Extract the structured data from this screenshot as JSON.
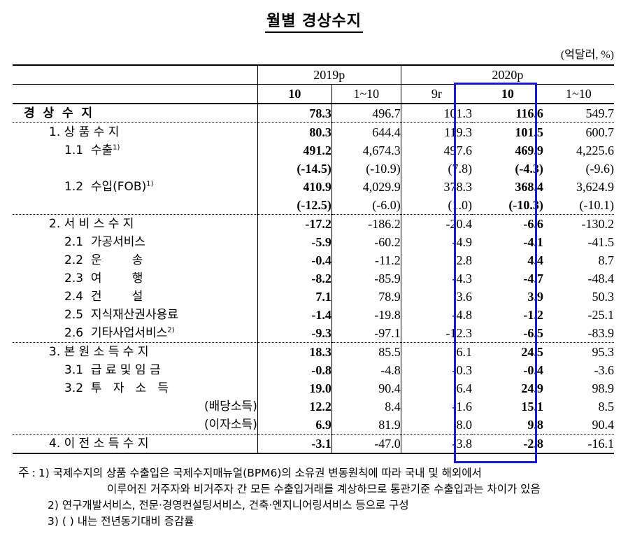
{
  "title": "월별 경상수지",
  "unit": "(억달러, %)",
  "header": {
    "years": [
      {
        "label": "2019p",
        "span": 2
      },
      {
        "label": "2020p",
        "span": 3
      }
    ],
    "periods": [
      "10",
      "1~10",
      "9r",
      "10",
      "1~10"
    ]
  },
  "rows": [
    {
      "label": "경  상  수  지",
      "indent": 0,
      "bold": true,
      "values": [
        "78.3",
        "496.7",
        "101.3",
        "116.6",
        "549.7"
      ],
      "border": "dot"
    },
    {
      "label": "1. 상 품 수 지",
      "indent": 1,
      "values": [
        "80.3",
        "644.4",
        "119.3",
        "101.5",
        "600.7"
      ]
    },
    {
      "label": "1.1  수출",
      "sup": "1)",
      "indent": 2,
      "values": [
        "491.2",
        "4,674.3",
        "497.6",
        "469.9",
        "4,225.6"
      ]
    },
    {
      "label": "",
      "indent": 2,
      "values": [
        "(-14.5)",
        "(-10.9)",
        "(7.8)",
        "(-4.3)",
        "(-9.6)"
      ]
    },
    {
      "label": "1.2  수입(FOB)",
      "sup": "1)",
      "indent": 2,
      "values": [
        "410.9",
        "4,029.9",
        "378.3",
        "368.4",
        "3,624.9"
      ]
    },
    {
      "label": "",
      "indent": 2,
      "values": [
        "(-12.5)",
        "(-6.0)",
        "(1.0)",
        "(-10.3)",
        "(-10.1)"
      ],
      "border": "dot"
    },
    {
      "label": "2. 서 비 스 수 지",
      "indent": 1,
      "values": [
        "-17.2",
        "-186.2",
        "-20.4",
        "-6.6",
        "-130.2"
      ]
    },
    {
      "label": "2.1  가공서비스",
      "indent": 2,
      "values": [
        "-5.9",
        "-60.2",
        "-4.9",
        "-4.1",
        "-41.5"
      ]
    },
    {
      "label": "2.2  운        송",
      "indent": 2,
      "values": [
        "-0.4",
        "-11.2",
        "2.8",
        "4.4",
        "8.7"
      ]
    },
    {
      "label": "2.3  여        행",
      "indent": 2,
      "values": [
        "-8.2",
        "-85.9",
        "-4.3",
        "-4.7",
        "-48.4"
      ]
    },
    {
      "label": "2.4  건        설",
      "indent": 2,
      "values": [
        "7.1",
        "78.9",
        "3.6",
        "3.9",
        "50.3"
      ]
    },
    {
      "label": "2.5  지식재산권사용료",
      "indent": 2,
      "values": [
        "-1.4",
        "-19.8",
        "-4.8",
        "-1.2",
        "-25.1"
      ]
    },
    {
      "label": "2.6  기타사업서비스",
      "sup": "2)",
      "indent": 2,
      "values": [
        "-9.3",
        "-97.1",
        "-12.3",
        "-6.5",
        "-83.9"
      ],
      "border": "dot"
    },
    {
      "label": "3. 본 원 소 득 수 지",
      "indent": 1,
      "values": [
        "18.3",
        "85.5",
        "6.1",
        "24.5",
        "95.3"
      ]
    },
    {
      "label": "3.1  급 료 및 임 금",
      "indent": 2,
      "values": [
        "-0.8",
        "-4.8",
        "-0.3",
        "-0.4",
        "-3.6"
      ]
    },
    {
      "label": "3.2  투   자   소   득",
      "indent": 2,
      "values": [
        "19.0",
        "90.4",
        "6.4",
        "24.9",
        "98.9"
      ]
    },
    {
      "label": "(배당소득)",
      "indent": 3,
      "values": [
        "12.2",
        "8.4",
        "-1.6",
        "15.1",
        "8.5"
      ]
    },
    {
      "label": "(이자소득)",
      "indent": 3,
      "values": [
        "6.9",
        "81.9",
        "8.0",
        "9.8",
        "90.4"
      ],
      "border": "dot"
    },
    {
      "label": "4. 이 전 소 득 수 지",
      "indent": 1,
      "values": [
        "-3.1",
        "-47.0",
        "-3.8",
        "-2.8",
        "-16.1"
      ],
      "border": "last"
    }
  ],
  "highlight": {
    "column": "2020p 10",
    "color": "#1a1acc"
  },
  "notes": {
    "lead": "주 : ",
    "items": [
      "1) 국제수지의 상품 수출입은 국제수지매뉴얼(BPM6)의 소유권 변동원칙에 따라 국내 및 해외에서",
      "이루어진 거주자와 비거주자 간 모든 수출입거래를 계상하므로 통관기준 수출입과는 차이가 있음",
      "2) 연구개발서비스, 전문·경영컨설팅서비스, 건축·엔지니어링서비스 등으로 구성",
      "3) (   ) 내는 전년동기대비 증감률"
    ]
  }
}
